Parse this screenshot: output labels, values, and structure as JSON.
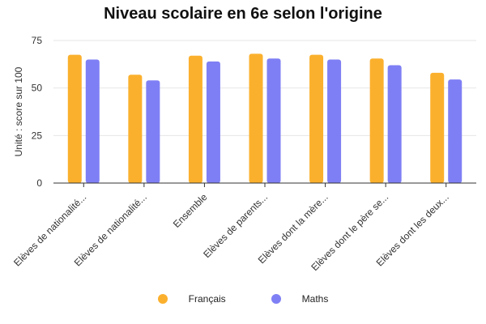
{
  "chart_data": {
    "type": "bar",
    "title": "Niveau scolaire en 6e selon l'origine",
    "xlabel": "",
    "ylabel": "Unité : score sur 100",
    "ylim": [
      0,
      75
    ],
    "yticks": [
      0,
      25,
      50,
      75
    ],
    "grid": true,
    "legend_position": "bottom",
    "categories": [
      "Elèves de nationalité...",
      "Elèves de nationalité...",
      "Ensemble",
      "Elèves de parents...",
      "Elèves dont la mère...",
      "Elèves dont le père se...",
      "Elèves dont les deux..."
    ],
    "series": [
      {
        "name": "Français",
        "color": "#FBB02D",
        "values": [
          67.5,
          57,
          67,
          68,
          67.5,
          65.5,
          58
        ]
      },
      {
        "name": "Maths",
        "color": "#7F7FF5",
        "values": [
          65,
          54,
          64,
          65.5,
          65,
          62,
          54.5
        ]
      }
    ]
  }
}
